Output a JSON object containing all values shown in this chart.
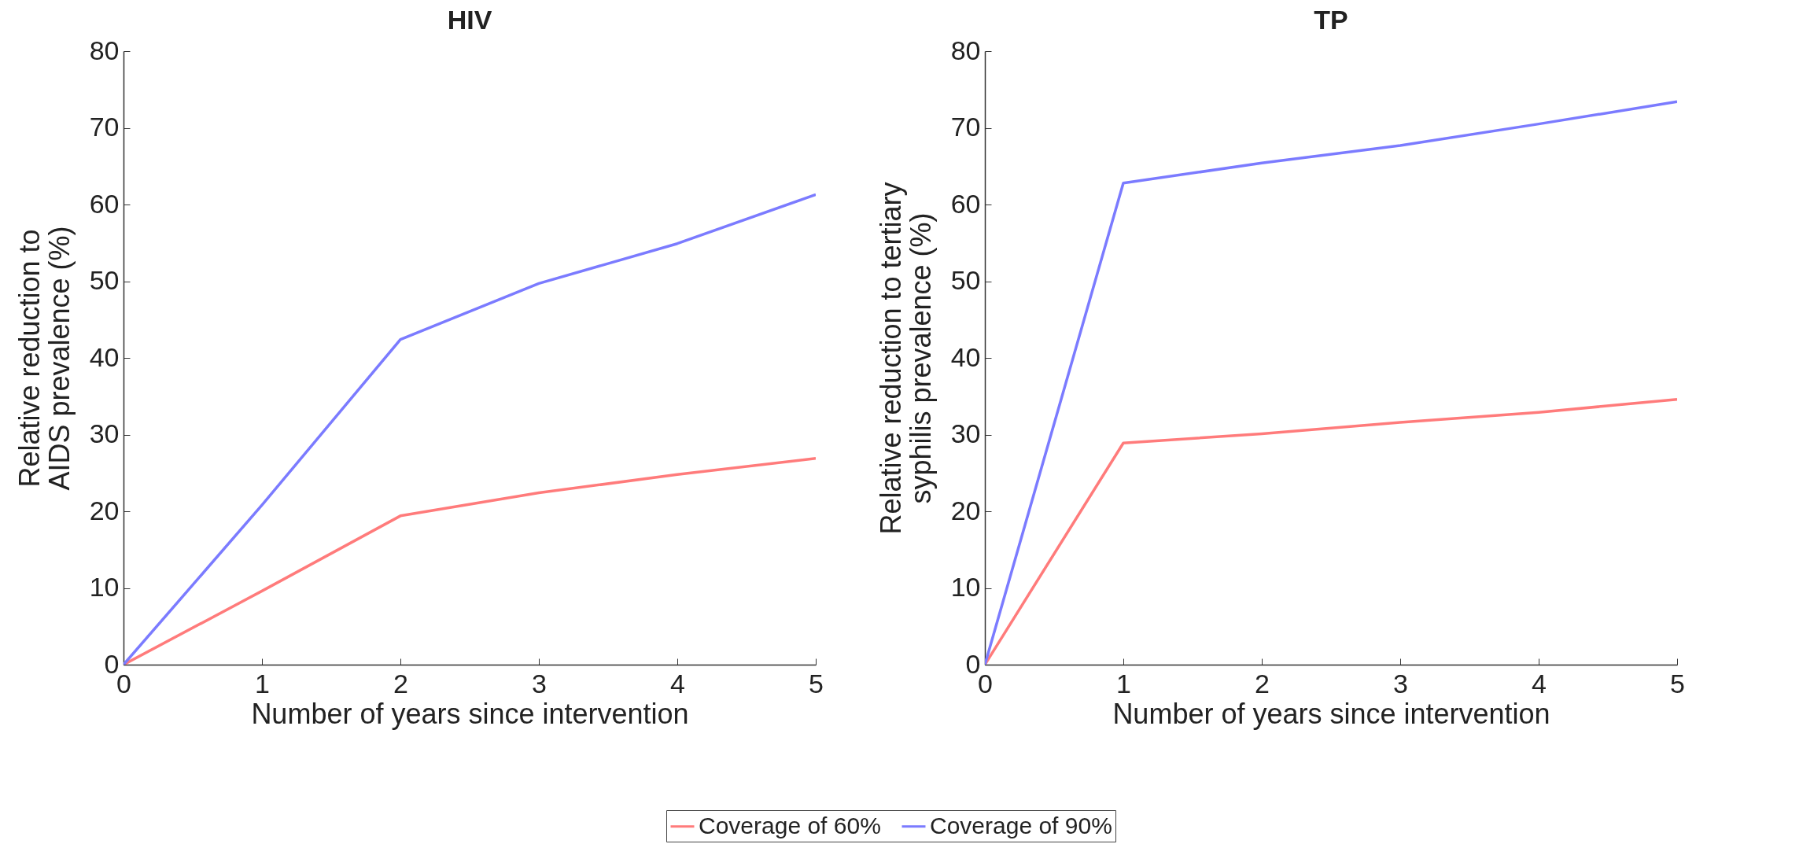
{
  "chart_data": [
    {
      "type": "line",
      "title": "HIV",
      "xlabel": "Number of years since intervention",
      "ylabel": "Relative reduction to AIDS prevalence (%)",
      "x": [
        0,
        1,
        2,
        3,
        4,
        5
      ],
      "series": [
        {
          "name": "Coverage of 60%",
          "color": "#ff7b7b",
          "values": [
            0,
            9.6,
            19.4,
            22.4,
            24.8,
            26.9
          ]
        },
        {
          "name": "Coverage of 90%",
          "color": "#7b7bff",
          "values": [
            0,
            20.8,
            42.4,
            49.7,
            54.9,
            61.3
          ]
        }
      ],
      "xlim": [
        0,
        5
      ],
      "xticks": [
        0,
        1,
        2,
        3,
        4,
        5
      ],
      "ylim": [
        0,
        80
      ],
      "yticks": [
        0,
        10,
        20,
        30,
        40,
        50,
        60,
        70,
        80
      ],
      "grid": false,
      "legend": "bottom",
      "line_style": "solid"
    },
    {
      "type": "line",
      "title": "TP",
      "xlabel": "Number of years since intervention",
      "ylabel": "Relative reduction to tertiary syphilis prevalence (%)",
      "x": [
        0,
        1,
        2,
        3,
        4,
        5
      ],
      "series": [
        {
          "name": "Coverage of 60%",
          "color": "#ff7b7b",
          "values": [
            0,
            28.9,
            30.1,
            31.6,
            32.9,
            34.6
          ]
        },
        {
          "name": "Coverage of 90%",
          "color": "#7b7bff",
          "values": [
            0,
            62.8,
            65.4,
            67.7,
            70.5,
            73.4
          ]
        }
      ],
      "xlim": [
        0,
        5
      ],
      "xticks": [
        0,
        1,
        2,
        3,
        4,
        5
      ],
      "ylim": [
        0,
        80
      ],
      "yticks": [
        0,
        10,
        20,
        30,
        40,
        50,
        60,
        70,
        80
      ],
      "grid": false,
      "legend": "bottom",
      "line_style": "solid"
    }
  ]
}
